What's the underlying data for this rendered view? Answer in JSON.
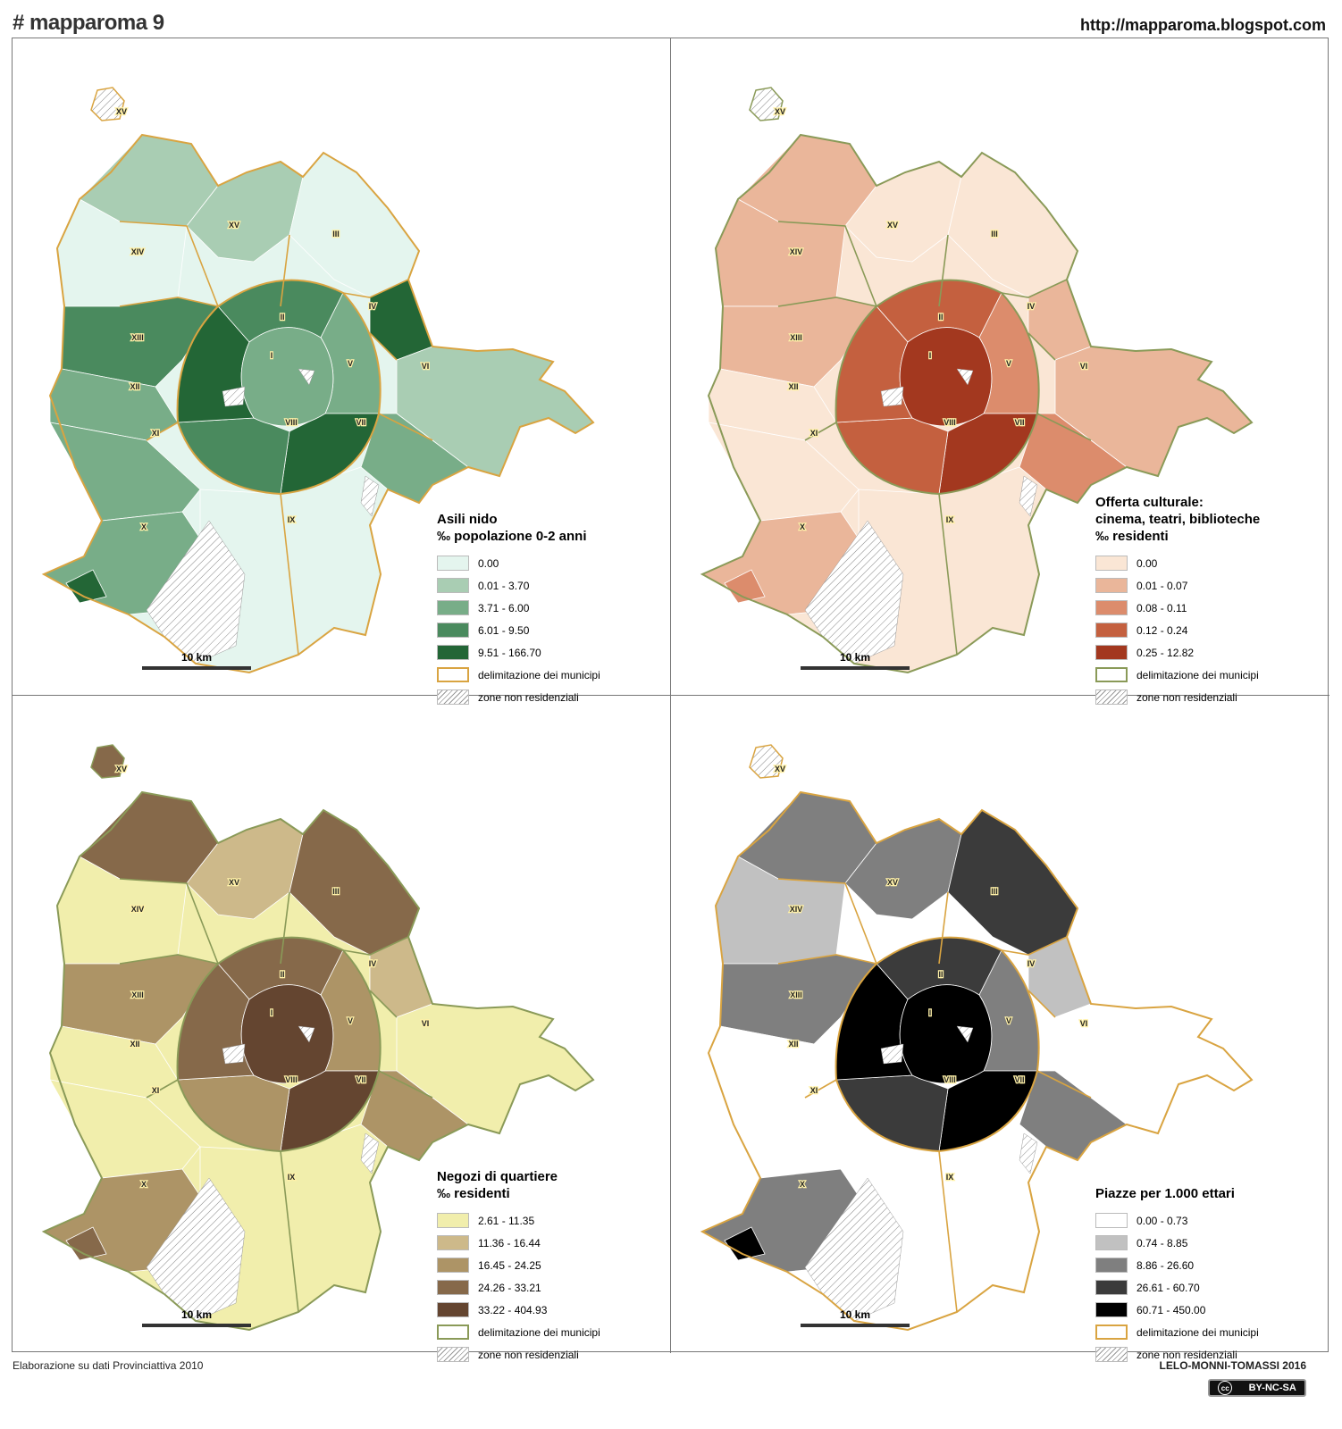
{
  "header": {
    "title": "# mapparoma 9",
    "url": "http://mapparoma.blogspot.com"
  },
  "footer": {
    "source": "Elaborazione su dati Provinciattiva 2010",
    "authors": "LELO-MONNI-TOMASSI 2016",
    "license": "BY-NC-SA",
    "license_icon": "cc-icon"
  },
  "scale_label": "10 km",
  "municipi_labels": [
    "I",
    "II",
    "III",
    "IV",
    "V",
    "VI",
    "VII",
    "VIII",
    "IX",
    "X",
    "XI",
    "XII",
    "XIII",
    "XIV",
    "XV"
  ],
  "panels": [
    {
      "title_lines": [
        "Asili nido",
        "‰  popolazione 0-2 anni"
      ],
      "boundary_color": "#d9a441",
      "colors": [
        "#e4f5ee",
        "#a9cdb3",
        "#78ad88",
        "#4a8a5e",
        "#236636"
      ],
      "classes": [
        "0.00",
        "0.01 - 3.70",
        "3.71 - 6.00",
        "6.01 - 9.50",
        "9.51 - 166.70"
      ],
      "boundary_label": "delimitazione dei municipi",
      "nonres_label": "zone non residenziali"
    },
    {
      "title_lines": [
        "Offerta culturale:",
        "cinema, teatri, biblioteche",
        "‰  residenti"
      ],
      "boundary_color": "#8a9a58",
      "colors": [
        "#fae6d5",
        "#eab69a",
        "#dc8c6c",
        "#c4603f",
        "#a3381f"
      ],
      "classes": [
        "0.00",
        "0.01 - 0.07",
        "0.08 - 0.11",
        "0.12 - 0.24",
        "0.25 - 12.82"
      ],
      "boundary_label": "delimitazione dei municipi",
      "nonres_label": "zone non residenziali"
    },
    {
      "title_lines": [
        "Negozi di quartiere",
        "‰  residenti"
      ],
      "boundary_color": "#8a9a58",
      "colors": [
        "#f1eeac",
        "#cdb98a",
        "#ad9466",
        "#86694a",
        "#644530"
      ],
      "classes": [
        "2.61 - 11.35",
        "11.36 - 16.44",
        "16.45 - 24.25",
        "24.26 - 33.21",
        "33.22 - 404.93"
      ],
      "boundary_label": "delimitazione dei municipi",
      "nonres_label": "zone non residenziali"
    },
    {
      "title_lines": [
        "Piazze per 1.000 ettari"
      ],
      "boundary_color": "#d9a441",
      "colors": [
        "#ffffff",
        "#c1c1c1",
        "#7f7f7f",
        "#3b3b3b",
        "#000000"
      ],
      "classes": [
        "0.00 - 0.73",
        "0.74 - 8.85",
        "8.86 - 26.60",
        "26.61 - 60.70",
        "60.71 - 450.00"
      ],
      "boundary_label": "delimitazione dei municipi",
      "nonres_label": "zone non residenziali"
    }
  ]
}
